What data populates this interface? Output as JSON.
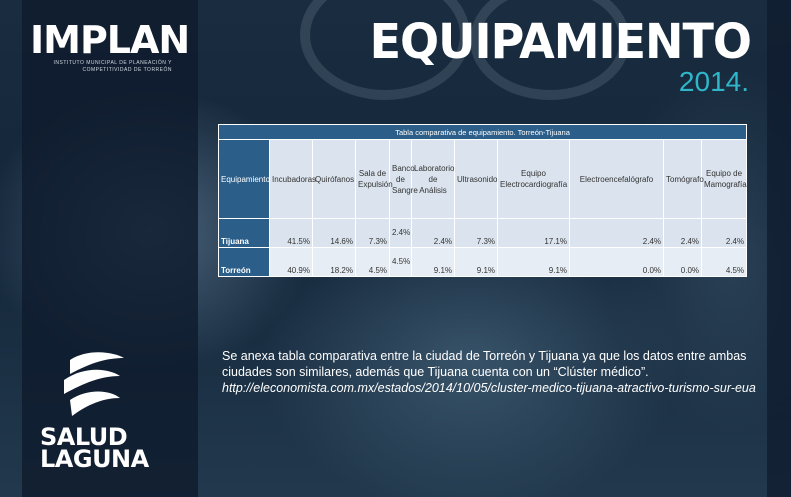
{
  "brand": {
    "name": "IMPLAN",
    "subtitle": "INSTITUTO MUNICIPAL DE PLANEACIÓN Y COMPETITIVIDAD DE TORREÓN"
  },
  "header": {
    "title": "EQUIPAMIENTO",
    "year": "2014."
  },
  "table": {
    "caption": "Tabla comparativa de equipamiento. Torreón-Tijuana",
    "columns": [
      "Equipamiento",
      "Incubadoras",
      "Quirófanos",
      "Sala de Expulsión",
      "Banco de Sangre",
      "Laboratorio de Análisis",
      "Ultrasonido",
      "Equipo Electrocardiografía",
      "Electroencefalógrafo",
      "Tomógrafo",
      "Equipo de Mamografía"
    ],
    "rows": [
      {
        "city": "Tijuana",
        "values": [
          "41.5%",
          "14.6%",
          "7.3%",
          "2.4%",
          "2.4%",
          "7.3%",
          "17.1%",
          "2.4%",
          "2.4%",
          "2.4%"
        ]
      },
      {
        "city": "Torreón",
        "values": [
          "40.9%",
          "18.2%",
          "4.5%",
          "4.5%",
          "9.1%",
          "9.1%",
          "9.1%",
          "0.0%",
          "0.0%",
          "4.5%"
        ]
      }
    ]
  },
  "paragraph": {
    "text": "Se anexa tabla comparativa entre la ciudad de Torreón y Tijuana ya que los datos entre ambas ciudades son similares, además que Tijuana cuenta con un “Clúster médico”.",
    "link": "http://eleconomista.com.mx/estados/2014/10/05/cluster-medico-tijuana-atractivo-turismo-sur-eua"
  },
  "footer_logo": {
    "line1": "SALUD",
    "line2": "LAGUNA"
  },
  "colors": {
    "accent": "#2fb6c9",
    "table_header": "#2b5e89",
    "table_cell": "#dbe4ee"
  }
}
